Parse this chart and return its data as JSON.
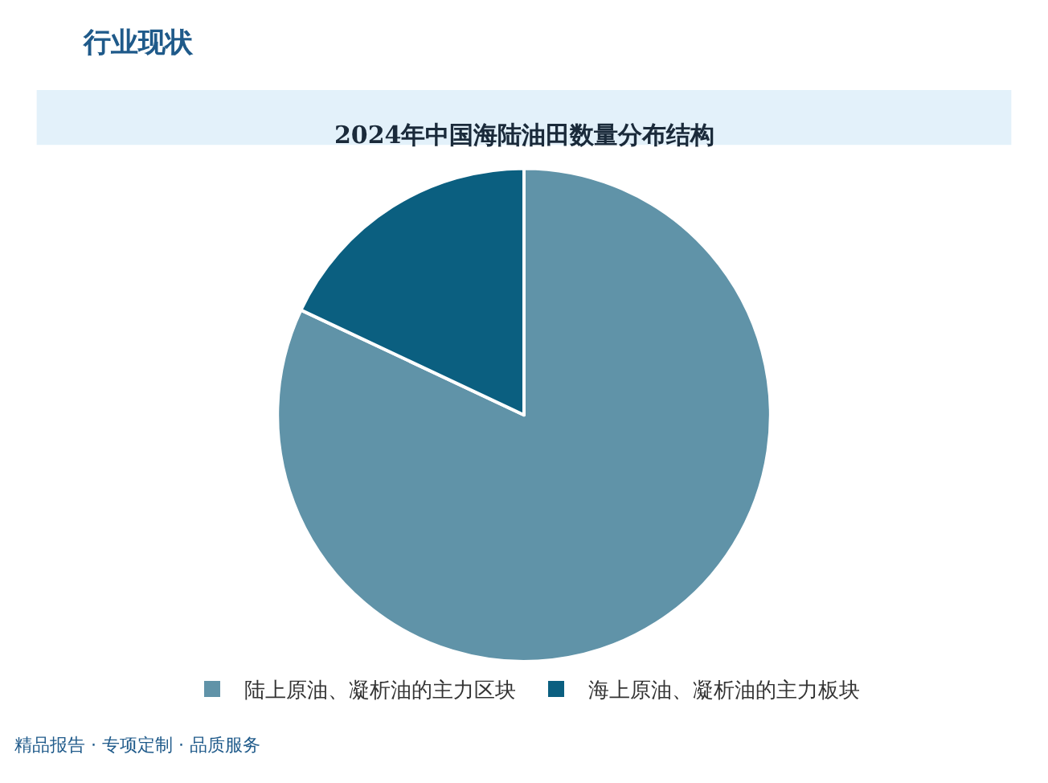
{
  "chart_data": {
    "type": "pie",
    "title": "2024年中国海陆油田数量分布结构",
    "categories": [
      "陆上原油、凝析油的主力区块",
      "海上原油、凝析油的主力板块"
    ],
    "values": [
      82,
      18
    ],
    "colors": [
      "#6093a8",
      "#0b5f80"
    ],
    "legend": "bottom",
    "annotations": [
      "行业现状",
      "精品报告 · 专项定制 · 品质服务"
    ]
  }
}
